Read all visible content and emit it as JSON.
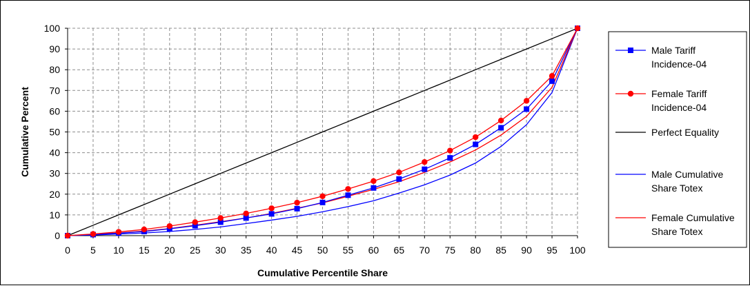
{
  "chart_data": {
    "type": "line",
    "title": "",
    "xlabel": "Cumulative Percentile Share",
    "ylabel": "Cumulative Percent",
    "xlim": [
      0,
      100
    ],
    "ylim": [
      0,
      100
    ],
    "x_ticks": [
      "0",
      "5",
      "10",
      "15",
      "20",
      "25",
      "30",
      "35",
      "40",
      "45",
      "50",
      "55",
      "60",
      "65",
      "70",
      "75",
      "80",
      "85",
      "90",
      "95",
      "100"
    ],
    "y_ticks": [
      "0",
      "10",
      "20",
      "30",
      "40",
      "50",
      "60",
      "70",
      "80",
      "90",
      "100"
    ],
    "grid": "dashed",
    "legend_position": "right",
    "x": [
      0,
      5,
      10,
      15,
      20,
      25,
      30,
      35,
      40,
      45,
      50,
      55,
      60,
      65,
      70,
      75,
      80,
      85,
      90,
      95,
      100
    ],
    "series": [
      {
        "name": "Male Tariff Incidence-04",
        "legend_lines": [
          "Male Tariff",
          "Incidence-04"
        ],
        "color": "#0000ff",
        "marker": "square",
        "values": [
          0,
          0.5,
          1.2,
          2.0,
          3.3,
          4.8,
          6.5,
          8.5,
          10.5,
          13.0,
          16.0,
          19.5,
          23.0,
          27.3,
          32.0,
          37.5,
          44.0,
          52.0,
          61.0,
          74.5,
          100
        ]
      },
      {
        "name": "Female Tariff Incidence-04",
        "legend_lines": [
          "Female Tariff",
          "Incidence-04"
        ],
        "color": "#ff0000",
        "marker": "circle",
        "values": [
          0,
          0.8,
          1.8,
          3.0,
          4.6,
          6.5,
          8.5,
          10.7,
          13.2,
          15.9,
          19.0,
          22.5,
          26.3,
          30.5,
          35.5,
          41.0,
          47.5,
          55.5,
          65.0,
          77.0,
          100
        ]
      },
      {
        "name": "Perfect Equality",
        "legend_lines": [
          "Perfect Equality"
        ],
        "color": "#000000",
        "marker": "none",
        "values": [
          0,
          5,
          10,
          15,
          20,
          25,
          30,
          35,
          40,
          45,
          50,
          55,
          60,
          65,
          70,
          75,
          80,
          85,
          90,
          95,
          100
        ]
      },
      {
        "name": "Male Cumulative Share Totex",
        "legend_lines": [
          "Male Cumulative",
          "Share Totex"
        ],
        "color": "#0000ff",
        "marker": "none",
        "values": [
          0,
          0.3,
          0.8,
          1.3,
          2.0,
          3.0,
          4.2,
          5.8,
          7.5,
          9.3,
          11.5,
          14.0,
          16.8,
          20.5,
          24.5,
          29.2,
          35.0,
          43.0,
          53.5,
          69.0,
          100
        ]
      },
      {
        "name": "Female Cumulative Share Totex",
        "legend_lines": [
          "Female Cumulative",
          "Share Totex"
        ],
        "color": "#ff0000",
        "marker": "none",
        "values": [
          0,
          0.6,
          1.3,
          2.2,
          3.4,
          5.0,
          6.7,
          8.5,
          10.7,
          13.2,
          15.8,
          19.0,
          22.3,
          26.0,
          30.5,
          35.5,
          41.3,
          48.5,
          57.5,
          71.5,
          100
        ]
      }
    ]
  }
}
